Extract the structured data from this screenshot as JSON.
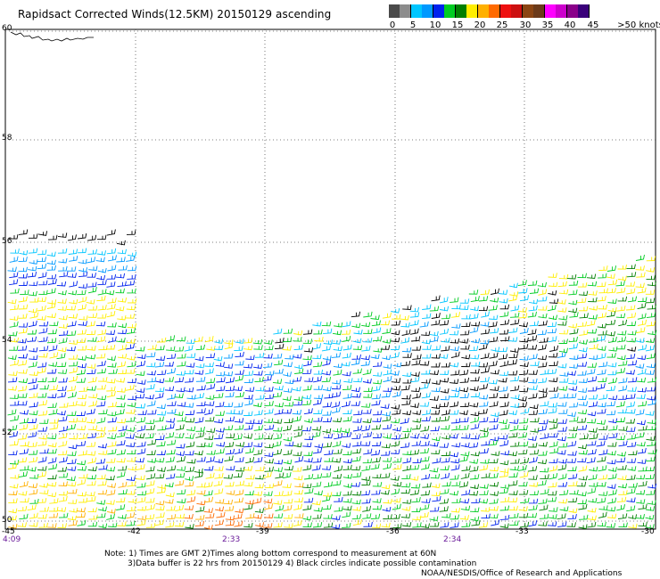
{
  "title": "Rapidsact Corrected Winds(12.5KM) 20150129 ascending",
  "legend": {
    "colors": [
      "#4a4a4a",
      "#8c8c8c",
      "#00c6ff",
      "#0099ff",
      "#0022ee",
      "#00cc22",
      "#007f00",
      "#ffee00",
      "#ffb000",
      "#ff6a00",
      "#ee1010",
      "#cc1010",
      "#8b4513",
      "#6b3a1a",
      "#ff00ff",
      "#cc00cc",
      "#8a008a",
      "#3a007a"
    ],
    "labels": [
      "0",
      "5",
      "10",
      "15",
      "20",
      "25",
      "30",
      "35",
      "40",
      "45",
      ">50 knots"
    ]
  },
  "axes": {
    "lat_labels": [
      "60",
      "58",
      "56",
      "54",
      "52",
      "50"
    ],
    "lon_labels": [
      "-45",
      "-42",
      "-39",
      "-36",
      "-33",
      "-30"
    ],
    "time_labels": [
      "4:09",
      "2:33",
      "2:34"
    ]
  },
  "footer": {
    "note_line1": "Note: 1) Times are GMT 2)Times along bottom correspond to measurement at 60N",
    "note_line2": "3)Data buffer is 22 hrs from 20150129 4) Black circles indicate possible contamination",
    "credit": "NOAA/NESDIS/Office of Research and Applications"
  },
  "map": {
    "lat_range": [
      50,
      60
    ],
    "lon_range": [
      -45,
      -30
    ],
    "grid": true
  }
}
